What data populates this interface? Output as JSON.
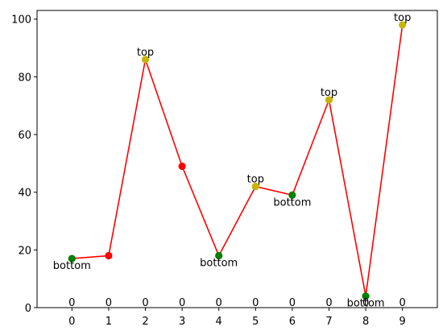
{
  "chart_data": {
    "type": "line",
    "title": "",
    "xlabel": "",
    "ylabel": "",
    "x": [
      0,
      1,
      2,
      3,
      4,
      5,
      6,
      7,
      8,
      9
    ],
    "xlim": [
      -0.95,
      9.95
    ],
    "ylim": [
      0,
      103
    ],
    "xticks": [
      "0",
      "1",
      "2",
      "3",
      "4",
      "5",
      "6",
      "7",
      "8",
      "9"
    ],
    "yticks": [
      0,
      20,
      40,
      60,
      80,
      100
    ],
    "grid": false,
    "series": [
      {
        "values": [
          17,
          18,
          86,
          49,
          18,
          42,
          39,
          72,
          4,
          98
        ],
        "line_color": "#ff0000"
      }
    ],
    "markers": [
      {
        "x": 0,
        "y": 17,
        "color": "#008000"
      },
      {
        "x": 1,
        "y": 18,
        "color": "#ff0000"
      },
      {
        "x": 2,
        "y": 86,
        "color": "#c8b400"
      },
      {
        "x": 3,
        "y": 49,
        "color": "#ff0000"
      },
      {
        "x": 4,
        "y": 18,
        "color": "#008000"
      },
      {
        "x": 5,
        "y": 42,
        "color": "#c8b400"
      },
      {
        "x": 6,
        "y": 39,
        "color": "#008000"
      },
      {
        "x": 7,
        "y": 72,
        "color": "#c8b400"
      },
      {
        "x": 8,
        "y": 4,
        "color": "#008000"
      },
      {
        "x": 9,
        "y": 98,
        "color": "#c8b400"
      }
    ],
    "annotations": [
      {
        "x": 0,
        "y": 17,
        "text": "bottom",
        "position": "below"
      },
      {
        "x": 2,
        "y": 86,
        "text": "top",
        "position": "above"
      },
      {
        "x": 4,
        "y": 18,
        "text": "bottom",
        "position": "below"
      },
      {
        "x": 5,
        "y": 42,
        "text": "top",
        "position": "above"
      },
      {
        "x": 6,
        "y": 39,
        "text": "bottom",
        "position": "below"
      },
      {
        "x": 7,
        "y": 72,
        "text": "top",
        "position": "above"
      },
      {
        "x": 8,
        "y": 4,
        "text": "bottom",
        "position": "below"
      },
      {
        "x": 9,
        "y": 98,
        "text": "top",
        "position": "above"
      }
    ],
    "baseline_labels": [
      {
        "x": 0,
        "text": "0"
      },
      {
        "x": 1,
        "text": "0"
      },
      {
        "x": 2,
        "text": "0"
      },
      {
        "x": 3,
        "text": "0"
      },
      {
        "x": 4,
        "text": "0"
      },
      {
        "x": 5,
        "text": "0"
      },
      {
        "x": 6,
        "text": "0"
      },
      {
        "x": 7,
        "text": "0"
      },
      {
        "x": 8,
        "text": "0"
      },
      {
        "x": 9,
        "text": "0"
      }
    ]
  }
}
